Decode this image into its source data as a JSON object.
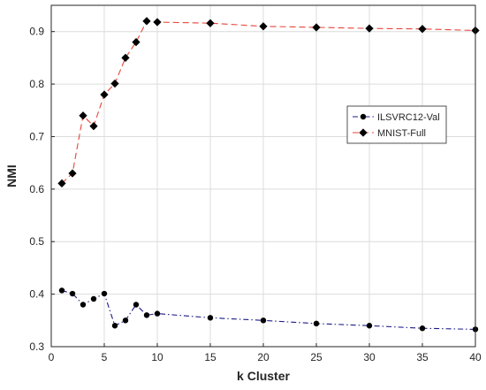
{
  "chart_data": {
    "type": "line",
    "xlabel": "k Cluster",
    "ylabel": "NMI",
    "xlim": [
      0,
      40
    ],
    "ylim": [
      0.3,
      0.95
    ],
    "xticks": [
      0,
      5,
      10,
      15,
      20,
      25,
      30,
      35,
      40
    ],
    "yticks": [
      0.3,
      0.4,
      0.5,
      0.6,
      0.7,
      0.8,
      0.9
    ],
    "grid": true,
    "legend_position": "right",
    "series": [
      {
        "name": "ILSVRC12-Val",
        "color": "#1c1c8a",
        "line_style": "dash-dot",
        "marker": "circle",
        "x": [
          1,
          2,
          3,
          4,
          5,
          6,
          7,
          8,
          9,
          10,
          15,
          20,
          25,
          30,
          35,
          40
        ],
        "y": [
          0.407,
          0.401,
          0.38,
          0.391,
          0.401,
          0.34,
          0.35,
          0.38,
          0.36,
          0.363,
          0.355,
          0.35,
          0.344,
          0.34,
          0.335,
          0.333
        ]
      },
      {
        "name": "MNIST-Full",
        "color": "#e8443a",
        "line_style": "dashed",
        "marker": "diamond",
        "x": [
          1,
          2,
          3,
          4,
          5,
          6,
          7,
          8,
          9,
          10,
          15,
          20,
          25,
          30,
          35,
          40
        ],
        "y": [
          0.611,
          0.63,
          0.74,
          0.72,
          0.78,
          0.801,
          0.85,
          0.88,
          0.92,
          0.918,
          0.916,
          0.91,
          0.908,
          0.906,
          0.905,
          0.902
        ]
      }
    ]
  }
}
